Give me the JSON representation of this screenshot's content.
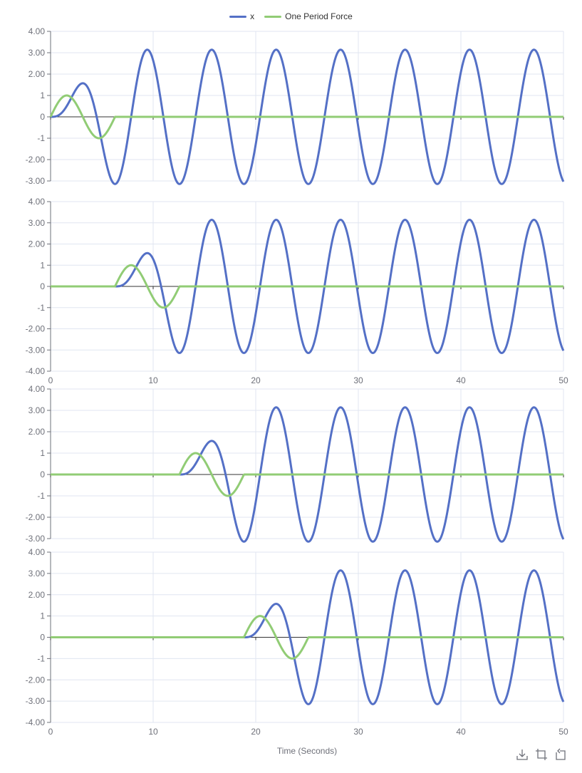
{
  "legend": {
    "x_label": "x",
    "force_label": "One Period Force"
  },
  "colors": {
    "x": "#5470c6",
    "force": "#91cc75",
    "grid": "#e0e6f1",
    "axis": "#6e7079",
    "zero_line": "#333333"
  },
  "toolbox": {
    "icons": [
      "download-icon",
      "crop-icon",
      "restore-icon"
    ]
  },
  "chart_data": [
    {
      "type": "line",
      "xlim": [
        0,
        50
      ],
      "ylim": [
        -3,
        4
      ],
      "yticks": [
        "4.00",
        "3.00",
        "2.00",
        "1",
        "0",
        "-1",
        "-2.00",
        "-3.00"
      ],
      "force": {
        "name": "One Period Force",
        "amplitude": 1,
        "period": 6.2832,
        "start": 0
      },
      "x_series": {
        "name": "x",
        "amplitude_after": 3.14,
        "omega": 1
      }
    },
    {
      "type": "line",
      "xlim": [
        0,
        50
      ],
      "ylim": [
        -4,
        4
      ],
      "yticks": [
        "4.00",
        "3.00",
        "2.00",
        "1",
        "0",
        "-1",
        "-2.00",
        "-3.00",
        "-4.00"
      ],
      "xticks": [
        "0",
        "10",
        "20",
        "30",
        "40",
        "50"
      ],
      "force": {
        "name": "One Period Force",
        "amplitude": 1,
        "period": 6.2832,
        "start": 6.2832
      },
      "x_series": {
        "name": "x",
        "amplitude_after": 3.14,
        "omega": 1
      }
    },
    {
      "type": "line",
      "xlim": [
        0,
        50
      ],
      "ylim": [
        -3,
        4
      ],
      "yticks": [
        "4.00",
        "3.00",
        "2.00",
        "1",
        "0",
        "-1",
        "-2.00",
        "-3.00"
      ],
      "force": {
        "name": "One Period Force",
        "amplitude": 1,
        "period": 6.2832,
        "start": 12.5664
      },
      "x_series": {
        "name": "x",
        "amplitude_after": 3.14,
        "omega": 1
      }
    },
    {
      "type": "line",
      "xlim": [
        0,
        50
      ],
      "ylim": [
        -4,
        4
      ],
      "yticks": [
        "4.00",
        "3.00",
        "2.00",
        "1",
        "0",
        "-1",
        "-2.00",
        "-3.00",
        "-4.00"
      ],
      "xticks": [
        "0",
        "10",
        "20",
        "30",
        "40",
        "50"
      ],
      "xlabel": "Time (Seconds)",
      "force": {
        "name": "One Period Force",
        "amplitude": 1,
        "period": 6.2832,
        "start": 18.8496
      },
      "x_series": {
        "name": "x",
        "amplitude_after": 3.14,
        "omega": 1
      }
    }
  ]
}
